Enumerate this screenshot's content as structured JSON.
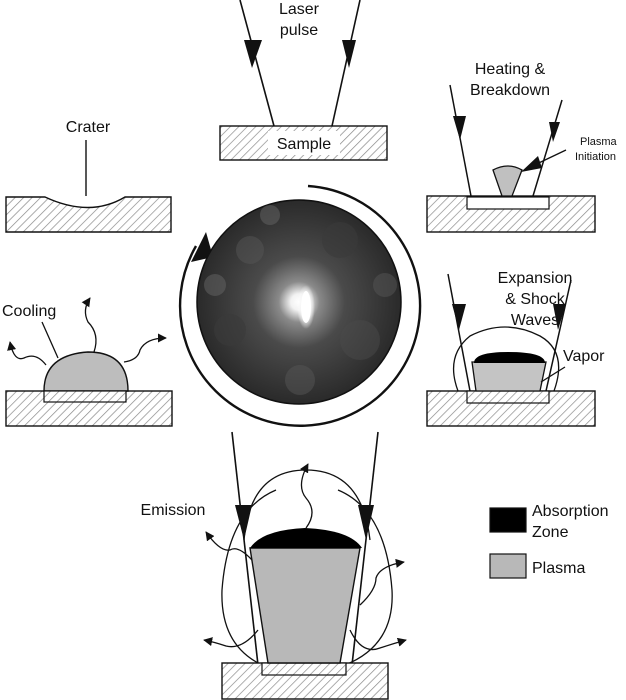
{
  "colors": {
    "line": "#111111",
    "plasma_fill": "#b8b8b8",
    "vapor_fill": "#c9c9c9",
    "absorption_fill": "#000000",
    "sample_fill": "#ffffff",
    "hatch": "#777777",
    "photo_dark": "#2b2b2b",
    "photo_bright": "#ffffff"
  },
  "labels": {
    "laser_pulse": [
      "Laser",
      "pulse"
    ],
    "sample": "Sample",
    "heating": [
      "Heating &",
      "Breakdown"
    ],
    "plasma_initiation": [
      "Plasma",
      "Initiation"
    ],
    "crater": "Crater",
    "cooling": "Cooling",
    "expansion": [
      "Expansion",
      "& Shock",
      "Waves"
    ],
    "vapor": "Vapor",
    "emission": "Emission"
  },
  "legend": [
    {
      "name": [
        "Absorption",
        "Zone"
      ],
      "fill_key": "absorption_fill"
    },
    {
      "name": [
        "Plasma"
      ],
      "fill_key": "plasma_fill"
    }
  ]
}
